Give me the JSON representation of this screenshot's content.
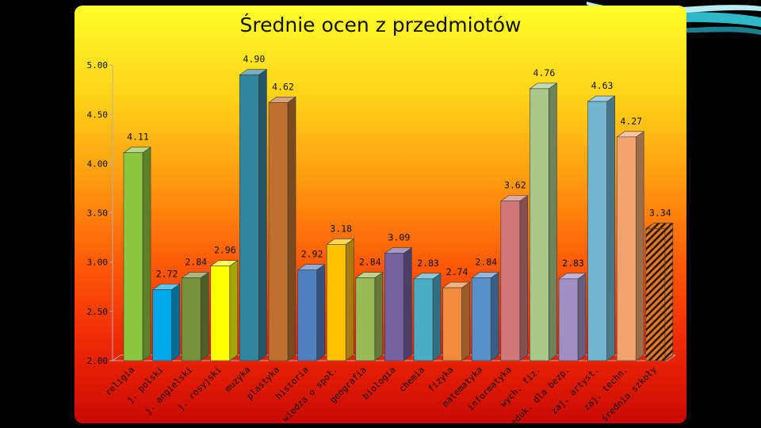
{
  "chart_data": {
    "type": "bar",
    "title": "Średnie ocen z przedmiotów",
    "categories": [
      "religia",
      "j. polski",
      "j. angielski",
      "j. rosyjski",
      "muzyka",
      "plastyka",
      "historia",
      "wiedza o społ.",
      "geografia",
      "biologia",
      "chemia",
      "fizyka",
      "matematyka",
      "informatyka",
      "wych. fiz.",
      "eduk. dla bezp.",
      "zaj. artyst.",
      "zaj. techn.",
      "średnia szkoły"
    ],
    "values": [
      4.11,
      2.72,
      2.84,
      2.96,
      4.9,
      4.62,
      2.92,
      3.18,
      2.84,
      3.09,
      2.83,
      2.74,
      2.84,
      3.62,
      4.76,
      2.83,
      4.63,
      4.27,
      3.34
    ],
    "data_labels": [
      "4.11",
      "2.72",
      "2.84",
      "2.96",
      "4.90",
      "4.62",
      "2.92",
      "3.18",
      "2.84",
      "3.09",
      "2.83",
      "2.74",
      "2.84",
      "3.62",
      "4.76",
      "2.83",
      "4.63",
      "4.27",
      "3.34"
    ],
    "colors": [
      "#8dc63f",
      "#00a8e8",
      "#76923c",
      "#ffff00",
      "#31859c",
      "#c0702e",
      "#4f7fc0",
      "#ffc000",
      "#9bbb59",
      "#7560a0",
      "#4bacc6",
      "#f08a3c",
      "#5890cc",
      "#d07878",
      "#a9c98a",
      "#9f8fc2",
      "#72b6d0",
      "#f5a470",
      "#e0782a"
    ],
    "hatched_last": true,
    "ylim": [
      2.0,
      5.0
    ],
    "yticks": [
      "2.00",
      "2.50",
      "3.00",
      "3.50",
      "4.00",
      "4.50",
      "5.00"
    ],
    "grid": false,
    "legend": "none"
  }
}
